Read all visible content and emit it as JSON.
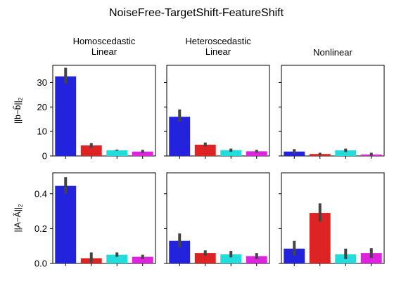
{
  "chart_data": {
    "type": "bar",
    "title": "NoiseFree-TargetShift-FeatureShift",
    "columns": [
      {
        "title_lines": [
          "Homoscedastic",
          "Linear"
        ]
      },
      {
        "title_lines": [
          "Heteroscedastic",
          "Linear"
        ]
      },
      {
        "title_lines": [
          "Nonlinear"
        ]
      }
    ],
    "rows": [
      {
        "ylabel": "||b−b̂||",
        "ylabel_sub": "2",
        "ylim": [
          0,
          37
        ],
        "yticks": [
          0,
          10,
          20,
          30
        ],
        "ytick_labels": [
          "0",
          "10",
          "20",
          "30"
        ],
        "panels": [
          {
            "values": [
              32.5,
              4.3,
              2.3,
              1.8
            ],
            "err_low": [
              29.5,
              3.3,
              2.1,
              1.2
            ],
            "err_high": [
              36.0,
              5.2,
              2.6,
              2.5
            ]
          },
          {
            "values": [
              16.0,
              4.6,
              2.4,
              1.9
            ],
            "err_low": [
              14.0,
              3.9,
              1.7,
              1.3
            ],
            "err_high": [
              19.0,
              5.5,
              3.0,
              2.5
            ]
          },
          {
            "values": [
              1.8,
              0.8,
              2.3,
              0.6
            ],
            "err_low": [
              1.0,
              0.3,
              1.6,
              0.1
            ],
            "err_high": [
              2.8,
              1.3,
              3.0,
              1.3
            ]
          }
        ]
      },
      {
        "ylabel": "||A−Â||",
        "ylabel_sub": "2",
        "ylim": [
          0,
          0.52
        ],
        "yticks": [
          0,
          0.2,
          0.4
        ],
        "ytick_labels": [
          "0.0",
          "0.2",
          "0.4"
        ],
        "panels": [
          {
            "values": [
              0.445,
              0.03,
              0.05,
              0.038
            ],
            "err_low": [
              0.4,
              0.005,
              0.038,
              0.025
            ],
            "err_high": [
              0.495,
              0.063,
              0.063,
              0.05
            ]
          },
          {
            "values": [
              0.13,
              0.06,
              0.052,
              0.042
            ],
            "err_low": [
              0.092,
              0.045,
              0.035,
              0.025
            ],
            "err_high": [
              0.172,
              0.075,
              0.072,
              0.06
            ]
          },
          {
            "values": [
              0.085,
              0.29,
              0.052,
              0.06
            ],
            "err_low": [
              0.045,
              0.24,
              0.025,
              0.032
            ],
            "err_high": [
              0.13,
              0.345,
              0.085,
              0.088
            ]
          }
        ]
      }
    ],
    "colors": [
      "#2323dd",
      "#dd2323",
      "#23dddd",
      "#dd23dd"
    ],
    "errorbar_color": "#444444",
    "grid": false
  }
}
